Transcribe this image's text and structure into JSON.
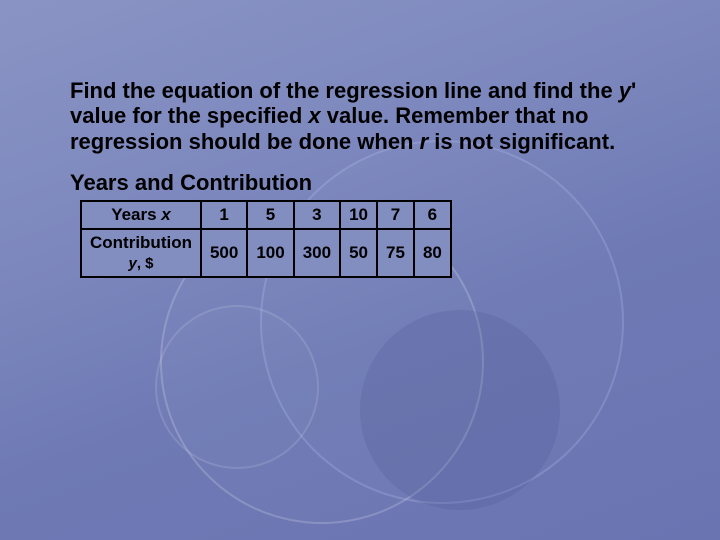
{
  "title_html": "Find the equation of the regression line and find the <span class='it'>y</span>' value for the specified <span class='it'>x</span> value. Remember that no regression should be done when <span class='it'>r</span> is not significant.",
  "subtitle": "Years and Contribution",
  "table": {
    "row1_label_html": "Years <span class='it'>x</span>",
    "row2_label_html": "Contribution<br><span class='sublabel'><span class='it'>y</span>, $</span>",
    "x": [
      "1",
      "5",
      "3",
      "10",
      "7",
      "6"
    ],
    "y": [
      "500",
      "100",
      "300",
      "50",
      "75",
      "80"
    ]
  },
  "colors": {
    "bg_top": "#8a94c4",
    "bg_bottom": "#6a74b1",
    "text": "#000000",
    "table_border": "#000000",
    "table_fill": "#828dc0",
    "circle_stroke": "rgba(255,255,255,0.2)"
  },
  "fontsize": {
    "title": 22,
    "table": 17
  }
}
